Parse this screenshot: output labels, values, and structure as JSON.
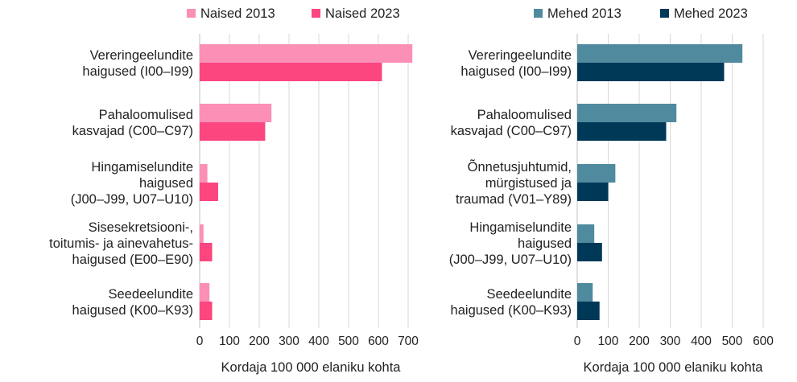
{
  "chart_data": [
    {
      "type": "bar",
      "orientation": "horizontal",
      "title": "",
      "xlabel": "Kordaja 100 000 elaniku kohta",
      "ylabel": "",
      "xlim": [
        0,
        700
      ],
      "xticks": [
        "0",
        "100",
        "200",
        "300",
        "400",
        "500",
        "600",
        "700"
      ],
      "grid": true,
      "legend": "top",
      "categories": [
        [
          "Vereringeelundite",
          "haigused (I00–I99)"
        ],
        [
          "Pahaloomulised",
          "kasvajad (C00–C97)"
        ],
        [
          "Hingamiselundite",
          "haigused",
          "(J00–J99, U07–U10)"
        ],
        [
          "Sisesekretsiooni-,",
          "toitumis- ja ainevahetus-",
          "haigused (E00–E90)"
        ],
        [
          "Seedeelundite",
          "haigused (K00–K93)"
        ]
      ],
      "series": [
        {
          "name": "Naised 2013",
          "color": "#fb8fb6",
          "values": [
            714,
            241,
            26,
            13,
            33
          ]
        },
        {
          "name": "Naised 2023",
          "color": "#fb4680",
          "values": [
            612,
            220,
            62,
            42,
            42
          ]
        }
      ]
    },
    {
      "type": "bar",
      "orientation": "horizontal",
      "title": "",
      "xlabel": "Kordaja 100 000 elaniku kohta",
      "ylabel": "",
      "xlim": [
        0,
        600
      ],
      "xticks": [
        "0",
        "100",
        "200",
        "300",
        "400",
        "500",
        "600"
      ],
      "grid": true,
      "legend": "top",
      "categories": [
        [
          "Vereringeelundite",
          "haigused (I00–I99)"
        ],
        [
          "Pahaloomulised",
          "kasvajad (C00–C97)"
        ],
        [
          "Õnnetusjuhtumid,",
          "mürgistused ja",
          "traumad (V01–Y89)"
        ],
        [
          "Hingamiselundite",
          "haigused",
          "(J00–J99, U07–U10)"
        ],
        [
          "Seedeelundite",
          "haigused (K00–K93)"
        ]
      ],
      "series": [
        {
          "name": "Mehed 2013",
          "color": "#4f8a9e",
          "values": [
            533,
            320,
            123,
            55,
            50
          ]
        },
        {
          "name": "Mehed 2023",
          "color": "#003858",
          "values": [
            474,
            287,
            100,
            80,
            72
          ]
        }
      ]
    }
  ]
}
